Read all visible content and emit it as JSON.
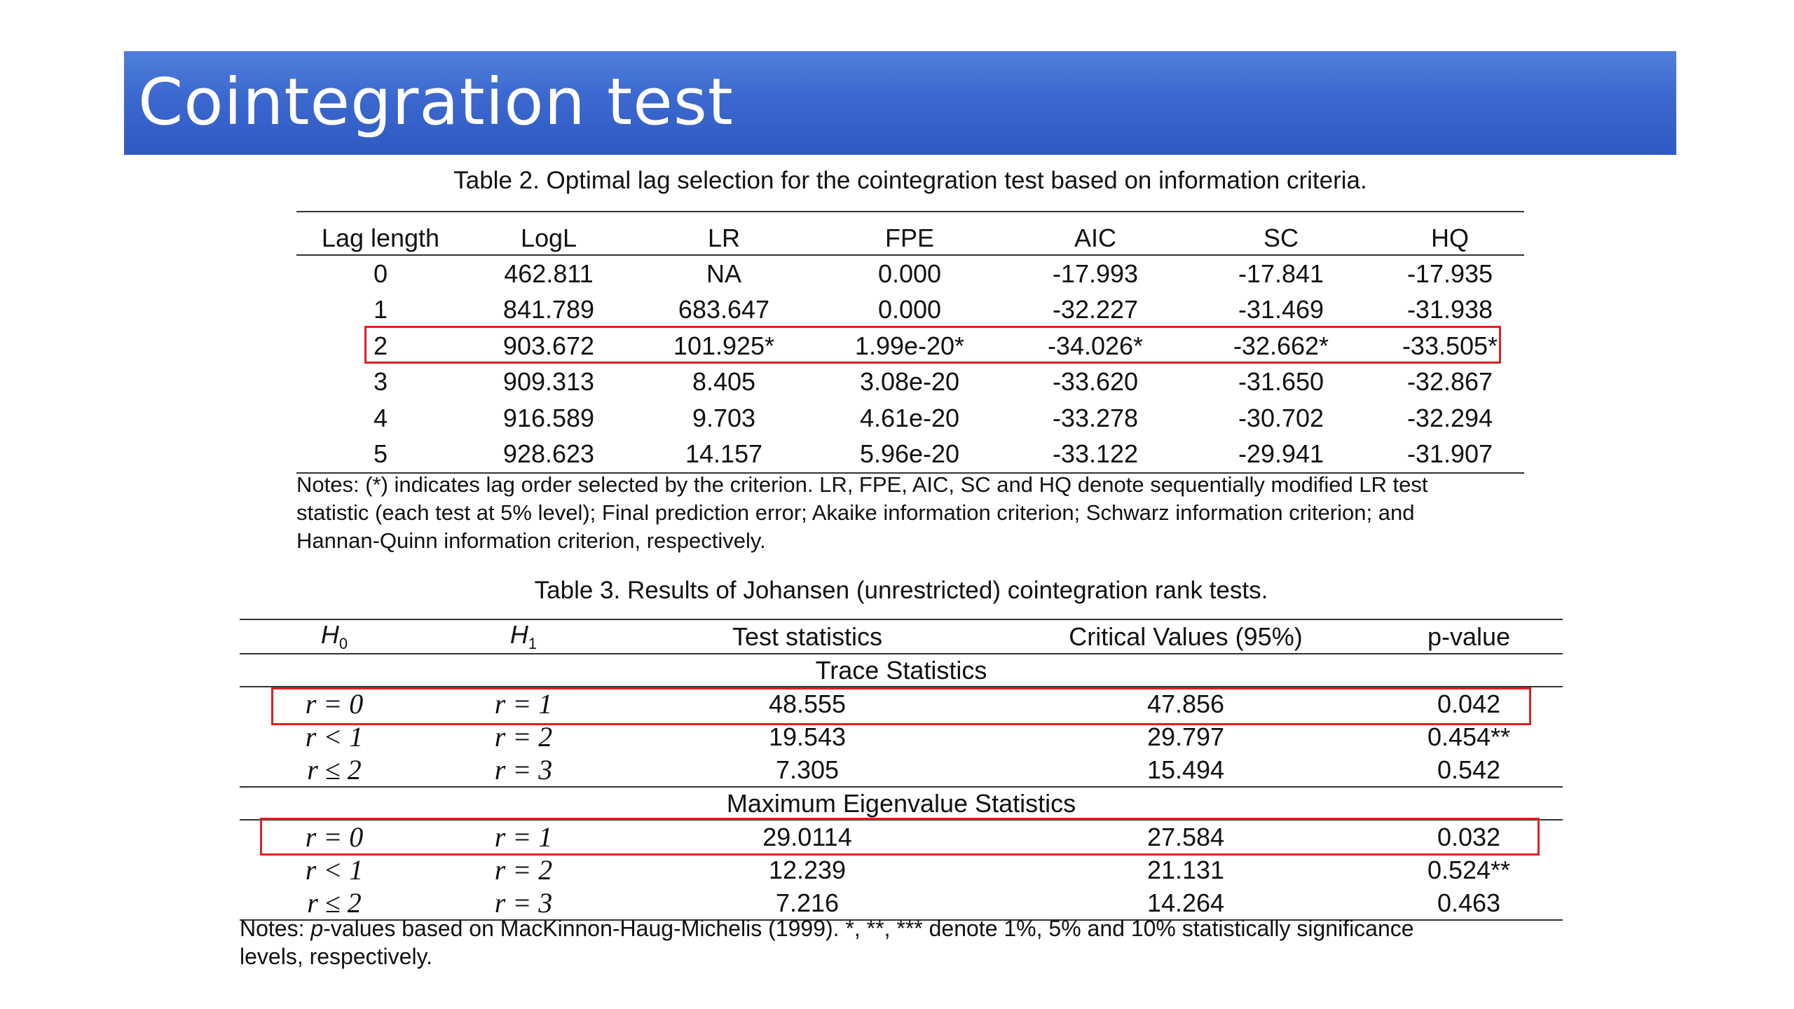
{
  "slide": {
    "title": "Cointegration test"
  },
  "table2": {
    "caption": "Table 2. Optimal lag selection for the cointegration test based on information criteria.",
    "headers": [
      "Lag length",
      "LogL",
      "LR",
      "FPE",
      "AIC",
      "SC",
      "HQ"
    ],
    "rows": [
      [
        "0",
        "462.811",
        "NA",
        "0.000",
        "-17.993",
        "-17.841",
        "-17.935"
      ],
      [
        "1",
        "841.789",
        "683.647",
        "0.000",
        "-32.227",
        "-31.469",
        "-31.938"
      ],
      [
        "2",
        "903.672",
        "101.925*",
        "1.99e-20*",
        "-34.026*",
        "-32.662*",
        "-33.505*"
      ],
      [
        "3",
        "909.313",
        "8.405",
        "3.08e-20",
        "-33.620",
        "-31.650",
        "-32.867"
      ],
      [
        "4",
        "916.589",
        "9.703",
        "4.61e-20",
        "-33.278",
        "-30.702",
        "-32.294"
      ],
      [
        "5",
        "928.623",
        "14.157",
        "5.96e-20",
        "-33.122",
        "-29.941",
        "-31.907"
      ]
    ],
    "notes": [
      "Notes: (*) indicates lag order selected by the criterion.  LR, FPE, AIC, SC and HQ denote sequentially modified LR test",
      "statistic (each test at 5% level); Final prediction error; Akaike information criterion; Schwarz information criterion; and",
      "Hannan-Quinn information criterion, respectively."
    ]
  },
  "table3": {
    "caption": "Table 3. Results of Johansen (unrestricted) cointegration rank tests.",
    "headers": {
      "h0": "H",
      "h0_sub": "0",
      "h1": "H",
      "h1_sub": "1",
      "test_stat": "Test statistics",
      "crit": "Critical Values (95%)",
      "pvalue": "p-value"
    },
    "trace_label": "Trace Statistics",
    "trace_rows": [
      {
        "h0": "r = 0",
        "h1": "r = 1",
        "stat": "48.555",
        "crit": "47.856",
        "p": "0.042"
      },
      {
        "h0": "r < 1",
        "h1": "r = 2",
        "stat": "19.543",
        "crit": "29.797",
        "p": "0.454**"
      },
      {
        "h0": "r ≤ 2",
        "h1": "r = 3",
        "stat": "7.305",
        "crit": "15.494",
        "p": "0.542"
      }
    ],
    "maxeig_label": "Maximum Eigenvalue Statistics",
    "maxeig_rows": [
      {
        "h0": "r = 0",
        "h1": "r = 1",
        "stat": "29.0114",
        "crit": "27.584",
        "p": "0.032"
      },
      {
        "h0": "r < 1",
        "h1": "r = 2",
        "stat": "12.239",
        "crit": "21.131",
        "p": "0.524**"
      },
      {
        "h0": "r ≤ 2",
        "h1": "r = 3",
        "stat": "7.216",
        "crit": "14.264",
        "p": "0.463"
      }
    ],
    "notes_prefix": "Notes: ",
    "notes_italic": "p",
    "notes_line1_rest": "-values based on MacKinnon-Haug-Michelis (1999). *, **, *** denote 1%, 5% and 10% statistically significance",
    "notes_line2": "levels, respectively."
  },
  "highlight_color": "#e02020"
}
